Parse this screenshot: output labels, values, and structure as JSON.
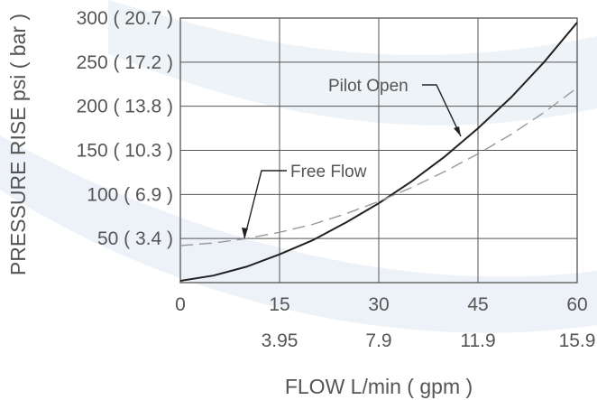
{
  "chart_data": {
    "type": "line",
    "xlabel": "FLOW L/min ( gpm )",
    "ylabel": "PRESSURE RISE psi ( bar )",
    "xlim": [
      0,
      60
    ],
    "ylim": [
      0,
      300
    ],
    "grid": true,
    "x_ticks": [
      {
        "value": 0,
        "label": "0",
        "alt": ""
      },
      {
        "value": 15,
        "label": "15",
        "alt": "3.95"
      },
      {
        "value": 30,
        "label": "30",
        "alt": "7.9"
      },
      {
        "value": 45,
        "label": "45",
        "alt": "11.9"
      },
      {
        "value": 60,
        "label": "60",
        "alt": "15.9"
      }
    ],
    "y_ticks": [
      {
        "value": 50,
        "label": "50",
        "alt": "3.4"
      },
      {
        "value": 100,
        "label": "100",
        "alt": "6.9"
      },
      {
        "value": 150,
        "label": "150",
        "alt": "10.3"
      },
      {
        "value": 200,
        "label": "200",
        "alt": "13.8"
      },
      {
        "value": 250,
        "label": "250",
        "alt": "17.2"
      },
      {
        "value": 300,
        "label": "300",
        "alt": "20.7"
      }
    ],
    "series": [
      {
        "name": "Pilot Open",
        "style": "solid",
        "color": "#222222",
        "x": [
          0,
          5,
          10,
          15,
          20,
          25,
          30,
          35,
          40,
          45,
          50,
          55,
          60
        ],
        "y": [
          2,
          8,
          18,
          32,
          48,
          68,
          90,
          115,
          143,
          175,
          210,
          250,
          295
        ]
      },
      {
        "name": "Free Flow",
        "style": "dashed",
        "color": "#999999",
        "x": [
          0,
          5,
          10,
          15,
          20,
          25,
          30,
          35,
          40,
          45,
          50,
          55,
          60
        ],
        "y": [
          42,
          45,
          50,
          57,
          66,
          78,
          92,
          108,
          126,
          146,
          168,
          193,
          221
        ]
      }
    ],
    "annotations": [
      {
        "text": "Pilot Open",
        "series": "Pilot Open"
      },
      {
        "text": "Free Flow",
        "series": "Free Flow"
      }
    ]
  },
  "colors": {
    "background": "#ffffff",
    "swoosh": "#dfe8f2",
    "grid": "#555555",
    "text": "#555555"
  }
}
